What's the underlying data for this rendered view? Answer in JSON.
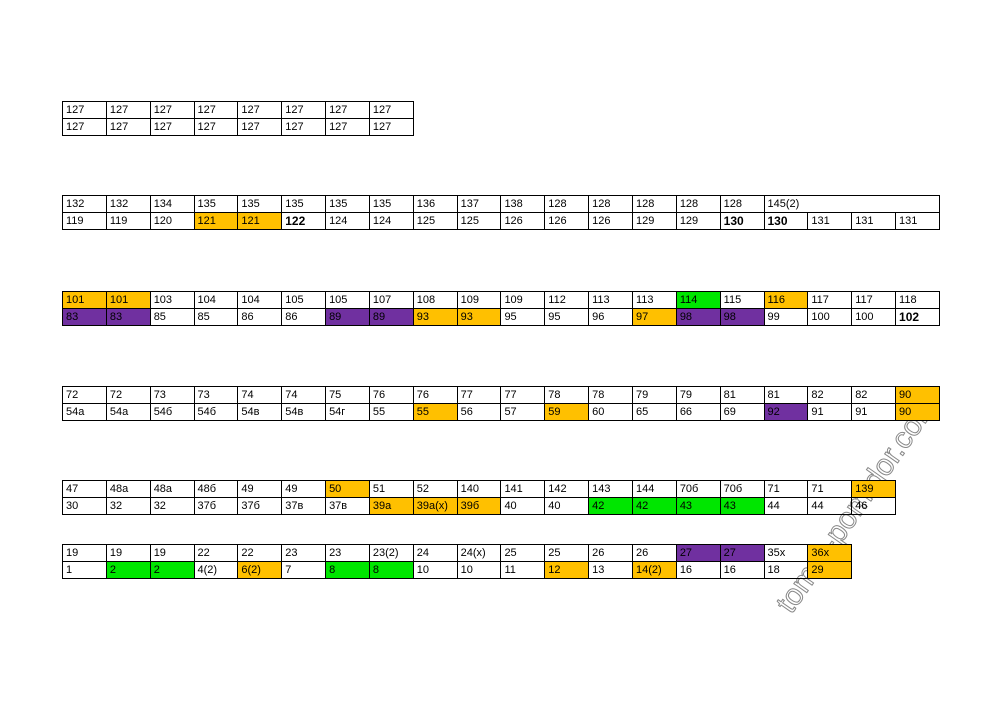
{
  "colors": {
    "o": "#ffc000",
    "g": "#00e600",
    "p": "#7030a0"
  },
  "watermark": "tomat-pomidor.com",
  "tables": [
    {
      "rows": [
        [
          "127",
          "127",
          "127",
          "127",
          "127",
          "127",
          "127",
          "127"
        ],
        [
          "127",
          "127",
          "127",
          "127",
          "127",
          "127",
          "127",
          "127"
        ]
      ]
    },
    {
      "rows": [
        [
          "132",
          "132",
          "134",
          "135",
          "135",
          "135",
          "135",
          "135",
          "136",
          "137",
          "138",
          "128",
          "128",
          "128",
          "128",
          "128",
          {
            "text": "145(2)",
            "span": 4
          }
        ],
        [
          "119",
          "119",
          "120",
          {
            "text": "121",
            "fill": "o"
          },
          {
            "text": "121",
            "fill": "o"
          },
          {
            "text": "122",
            "bold": true
          },
          "124",
          "124",
          "125",
          "125",
          "126",
          "126",
          "126",
          "129",
          "129",
          {
            "text": "130",
            "bold": true
          },
          {
            "text": "130",
            "bold": true
          },
          "131",
          "131",
          "131"
        ]
      ]
    },
    {
      "rows": [
        [
          {
            "text": "101",
            "fill": "o"
          },
          {
            "text": "101",
            "fill": "o"
          },
          "103",
          "104",
          "104",
          "105",
          "105",
          "107",
          "108",
          "109",
          "109",
          "112",
          "113",
          "113",
          {
            "text": "114",
            "fill": "g"
          },
          "115",
          {
            "text": "116",
            "fill": "o"
          },
          "117",
          "117",
          "118"
        ],
        [
          {
            "text": "83",
            "fill": "p"
          },
          {
            "text": "83",
            "fill": "p"
          },
          "85",
          "85",
          "86",
          "86",
          {
            "text": "89",
            "fill": "p"
          },
          {
            "text": "89",
            "fill": "p"
          },
          {
            "text": "93",
            "fill": "o"
          },
          {
            "text": "93",
            "fill": "o"
          },
          "95",
          "95",
          "96",
          {
            "text": "97",
            "fill": "o"
          },
          {
            "text": "98",
            "fill": "p"
          },
          {
            "text": "98",
            "fill": "p"
          },
          "99",
          "100",
          "100",
          {
            "text": "102",
            "bold": true
          }
        ]
      ]
    },
    {
      "rows": [
        [
          "72",
          "72",
          "73",
          "73",
          "74",
          "74",
          "75",
          "76",
          "76",
          "77",
          "77",
          "78",
          "78",
          "79",
          "79",
          "81",
          "81",
          "82",
          "82",
          {
            "text": "90",
            "fill": "o"
          }
        ],
        [
          "54а",
          "54а",
          "54б",
          "54б",
          "54в",
          "54в",
          "54г",
          "55",
          {
            "text": "55",
            "fill": "o"
          },
          "56",
          "57",
          {
            "text": "59",
            "fill": "o"
          },
          "60",
          "65",
          "66",
          "69",
          {
            "text": "92",
            "fill": "p"
          },
          "91",
          "91",
          {
            "text": "90",
            "fill": "o"
          }
        ]
      ]
    },
    {
      "rows": [
        [
          "47",
          "48а",
          "48а",
          "48б",
          "49",
          "49",
          {
            "text": "50",
            "fill": "o"
          },
          "51",
          "52",
          "140",
          "141",
          "142",
          "143",
          "144",
          "70б",
          "70б",
          "71",
          "71",
          {
            "text": "139",
            "fill": "o"
          }
        ],
        [
          "30",
          "32",
          "32",
          "37б",
          "37б",
          "37в",
          "37в",
          {
            "text": "39а",
            "fill": "o"
          },
          {
            "text": "39а(х)",
            "fill": "o"
          },
          {
            "text": "39б",
            "fill": "o"
          },
          "40",
          "40",
          {
            "text": "42",
            "fill": "g"
          },
          {
            "text": "42",
            "fill": "g"
          },
          {
            "text": "43",
            "fill": "g"
          },
          {
            "text": "43",
            "fill": "g"
          },
          "44",
          "44",
          "46"
        ]
      ]
    },
    {
      "rows": [
        [
          "19",
          "19",
          "19",
          "22",
          "22",
          "23",
          "23",
          "23(2)",
          "24",
          "24(х)",
          "25",
          "25",
          "26",
          "26",
          {
            "text": "27",
            "fill": "p"
          },
          {
            "text": "27",
            "fill": "p"
          },
          "35х",
          {
            "text": "36х",
            "fill": "o"
          }
        ],
        [
          "1",
          {
            "text": "2",
            "fill": "g"
          },
          {
            "text": "2",
            "fill": "g"
          },
          "4(2)",
          {
            "text": "6(2)",
            "fill": "o"
          },
          "7",
          {
            "text": "8",
            "fill": "g"
          },
          {
            "text": "8",
            "fill": "g"
          },
          "10",
          "10",
          "11",
          {
            "text": "12",
            "fill": "o"
          },
          "13",
          {
            "text": "14(2)",
            "fill": "o"
          },
          "16",
          "16",
          "18",
          {
            "text": "29",
            "fill": "o"
          }
        ]
      ]
    }
  ]
}
